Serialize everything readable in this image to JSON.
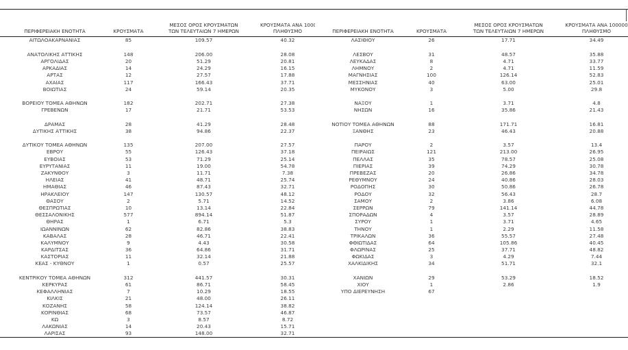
{
  "accent_colors": {
    "text": "#3a3a3a",
    "line": "#1a1a1a",
    "background": "#ffffff"
  },
  "header": {
    "region": "ΠΕΡΙΦΕΡΕΙΑΚΗ ΕΝΟΤΗΤΑ",
    "cases": "ΚΡΟΥΣΜΑΤΑ",
    "avg7_line1": "ΜΕΣΟΣ ΟΡΟΣ ΚΡΟΥΣΜΑΤΩΝ",
    "avg7_line2": "ΤΩΝ ΤΕΛΕΥΤΑΙΩΝ 7 ΗΜΕΡΩΝ",
    "per100k_line1": "ΚΡΟΥΣΜΑΤΑ ΑΝΑ 100000",
    "per100k_line2": "ΠΛΗΘΥΣΜΟ"
  },
  "left_table": {
    "rows": [
      [
        "ΑΙΤΩΛΟΑΚΑΡΝΑΝΙΑΣ",
        "85",
        "109.57",
        "40.32"
      ],
      null,
      [
        "ΑΝΑΤΟΛΙΚΗΣ ΑΤΤΙΚΗΣ",
        "148",
        "206.00",
        "28.08"
      ],
      [
        "ΑΡΓΟΛΙΔΑΣ",
        "20",
        "51.29",
        "20.81"
      ],
      [
        "ΑΡΚΑΔΙΑΣ",
        "14",
        "24.29",
        "16.15"
      ],
      [
        "ΑΡΤΑΣ",
        "12",
        "27.57",
        "17.88"
      ],
      [
        "ΑΧΑΪΑΣ",
        "117",
        "166.43",
        "37.71"
      ],
      [
        "ΒΟΙΩΤΙΑΣ",
        "24",
        "59.14",
        "20.35"
      ],
      null,
      [
        "ΒΟΡΕΙΟΥ ΤΟΜΕΑ ΑΘΗΝΩΝ",
        "182",
        "202.71",
        "27.38"
      ],
      [
        "ΓΡΕΒΕΝΩΝ",
        "17",
        "21.71",
        "53.53"
      ],
      null,
      [
        "ΔΡΑΜΑΣ",
        "28",
        "41.29",
        "28.48"
      ],
      [
        "ΔΥΤΙΚΗΣ ΑΤΤΙΚΗΣ",
        "38",
        "94.86",
        "22.37"
      ],
      null,
      [
        "ΔΥΤΙΚΟΥ ΤΟΜΕΑ ΑΘΗΝΩΝ",
        "135",
        "207.00",
        "27.57"
      ],
      [
        "ΕΒΡΟΥ",
        "55",
        "126.43",
        "37.18"
      ],
      [
        "ΕΥΒΟΙΑΣ",
        "53",
        "71.29",
        "25.14"
      ],
      [
        "ΕΥΡΥΤΑΝΙΑΣ",
        "11",
        "19.00",
        "54.78"
      ],
      [
        "ΖΑΚΥΝΘΟΥ",
        "3",
        "11.71",
        "7.38"
      ],
      [
        "ΗΛΕΙΑΣ",
        "41",
        "48.71",
        "25.74"
      ],
      [
        "ΗΜΑΘΙΑΣ",
        "46",
        "87.43",
        "32.71"
      ],
      [
        "ΗΡΑΚΛΕΙΟΥ",
        "147",
        "130.57",
        "48.12"
      ],
      [
        "ΘΑΣΟΥ",
        "2",
        "5.71",
        "14.52"
      ],
      [
        "ΘΕΣΠΡΩΤΙΑΣ",
        "10",
        "13.14",
        "22.84"
      ],
      [
        "ΘΕΣΣΑΛΟΝΙΚΗΣ",
        "577",
        "894.14",
        "51.87"
      ],
      [
        "ΘΗΡΑΣ",
        "1",
        "6.71",
        "5.3"
      ],
      [
        "ΙΩΑΝΝΙΝΩΝ",
        "62",
        "82.86",
        "38.83"
      ],
      [
        "ΚΑΒΑΛΑΣ",
        "28",
        "46.71",
        "22.41"
      ],
      [
        "ΚΑΛΥΜΝΟΥ",
        "9",
        "4.43",
        "30.58"
      ],
      [
        "ΚΑΡΔΙΤΣΑΣ",
        "36",
        "64.86",
        "31.71"
      ],
      [
        "ΚΑΣΤΟΡΙΑΣ",
        "11",
        "32.14",
        "21.88"
      ],
      [
        "ΚΕΑΣ - ΚΥΘΝΟΥ",
        "1",
        "0.57",
        "25.57"
      ],
      null,
      [
        "ΚΕΝΤΡΙΚΟΥ ΤΟΜΕΑ ΑΘΗΝΩΝ",
        "312",
        "441.57",
        "30.31"
      ],
      [
        "ΚΕΡΚΥΡΑΣ",
        "61",
        "86.71",
        "58.45"
      ],
      [
        "ΚΕΦΑΛΛΗΝΙΑΣ",
        "7",
        "10.29",
        "18.55"
      ],
      [
        "ΚΙΛΚΙΣ",
        "21",
        "48.00",
        "26.11"
      ],
      [
        "ΚΟΖΑΝΗΣ",
        "58",
        "124.14",
        "38.82"
      ],
      [
        "ΚΟΡΙΝΘΙΑΣ",
        "68",
        "73.57",
        "46.87"
      ],
      [
        "ΚΩ",
        "3",
        "8.57",
        "8.72"
      ],
      [
        "ΛΑΚΩΝΙΑΣ",
        "14",
        "20.43",
        "15.71"
      ],
      [
        "ΛΑΡΙΣΑΣ",
        "93",
        "148.00",
        "32.71"
      ]
    ]
  },
  "right_table": {
    "rows": [
      [
        "ΛΑΣΙΘΙΟΥ",
        "26",
        "17.71",
        "34.49"
      ],
      null,
      [
        "ΛΕΣΒΟΥ",
        "31",
        "48.57",
        "35.88"
      ],
      [
        "ΛΕΥΚΑΔΑΣ",
        "8",
        "4.71",
        "33.77"
      ],
      [
        "ΛΗΜΝΟΥ",
        "2",
        "4.71",
        "11.59"
      ],
      [
        "ΜΑΓΝΗΣΙΑΣ",
        "100",
        "126.14",
        "52.83"
      ],
      [
        "ΜΕΣΣΗΝΙΑΣ",
        "40",
        "63.00",
        "25.01"
      ],
      [
        "ΜΥΚΟΝΟΥ",
        "3",
        "5.00",
        "29.8"
      ],
      null,
      [
        "ΝΑΞΟΥ",
        "1",
        "3.71",
        "4.8"
      ],
      [
        "ΝΗΣΩΝ",
        "16",
        "35.86",
        "21.43"
      ],
      null,
      [
        "ΝΟΤΙΟΥ ΤΟΜΕΑ ΑΘΗΝΩΝ",
        "88",
        "171.71",
        "16.81"
      ],
      [
        "ΞΑΝΘΗΣ",
        "23",
        "46.43",
        "20.88"
      ],
      null,
      [
        "ΠΑΡΟΥ",
        "2",
        "3.57",
        "13.4"
      ],
      [
        "ΠΕΙΡΑΙΩΣ",
        "121",
        "213.00",
        "26.95"
      ],
      [
        "ΠΕΛΛΑΣ",
        "35",
        "78.57",
        "25.08"
      ],
      [
        "ΠΙΕΡΙΑΣ",
        "39",
        "74.29",
        "30.78"
      ],
      [
        "ΠΡΕΒΕΖΑΣ",
        "20",
        "26.86",
        "34.78"
      ],
      [
        "ΡΕΘΥΜΝΟΥ",
        "24",
        "40.86",
        "28.03"
      ],
      [
        "ΡΟΔΟΠΗΣ",
        "30",
        "50.86",
        "26.78"
      ],
      [
        "ΡΟΔΟΥ",
        "32",
        "56.43",
        "28.7"
      ],
      [
        "ΣΑΜΟΥ",
        "2",
        "3.86",
        "6.08"
      ],
      [
        "ΣΕΡΡΩΝ",
        "79",
        "141.14",
        "44.78"
      ],
      [
        "ΣΠΟΡΑΔΩΝ",
        "4",
        "3.57",
        "28.89"
      ],
      [
        "ΣΥΡΟΥ",
        "1",
        "3.71",
        "4.65"
      ],
      [
        "ΤΗΝΟΥ",
        "1",
        "2.29",
        "11.58"
      ],
      [
        "ΤΡΙΚΑΛΩΝ",
        "36",
        "55.57",
        "27.48"
      ],
      [
        "ΦΘΙΩΤΙΔΑΣ",
        "64",
        "105.86",
        "40.45"
      ],
      [
        "ΦΛΩΡΙΝΑΣ",
        "25",
        "37.71",
        "48.82"
      ],
      [
        "ΦΩΚΙΔΑΣ",
        "3",
        "4.29",
        "7.44"
      ],
      [
        "ΧΑΛΚΙΔΙΚΗΣ",
        "34",
        "51.71",
        "32.1"
      ],
      null,
      [
        "ΧΑΝΙΩΝ",
        "29",
        "53.29",
        "18.52"
      ],
      [
        "ΧΙΟΥ",
        "1",
        "2.86",
        "1.9"
      ],
      [
        "ΥΠΟ ΔΙΕΡΕΥΝΗΣΗ",
        "67",
        "",
        ""
      ]
    ]
  }
}
